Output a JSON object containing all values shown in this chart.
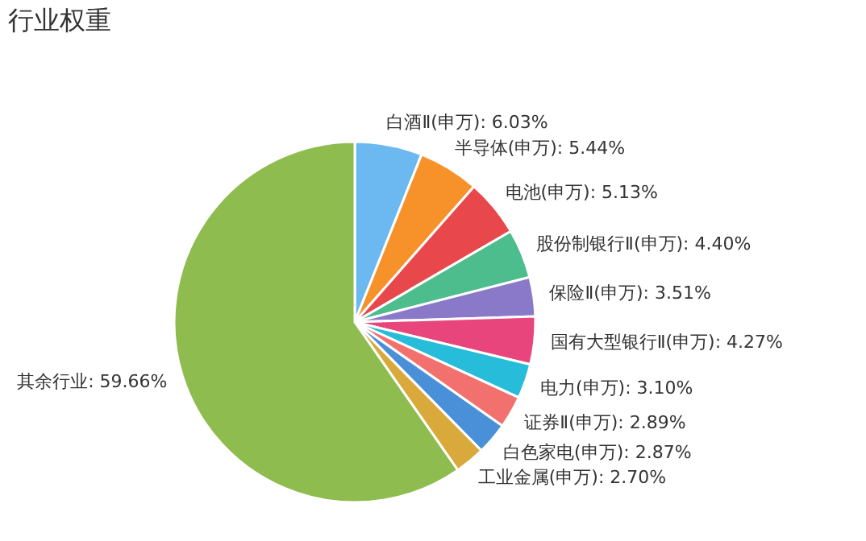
{
  "chart_data": {
    "type": "pie",
    "title": "行业权重",
    "categories": [
      "白酒Ⅱ(申万)",
      "半导体(申万)",
      "电池(申万)",
      "股份制银行Ⅱ(申万)",
      "保险Ⅱ(申万)",
      "国有大型银行Ⅱ(申万)",
      "电力(申万)",
      "证券Ⅱ(申万)",
      "白色家电(申万)",
      "工业金属(申万)",
      "其余行业"
    ],
    "values": [
      6.03,
      5.44,
      5.13,
      4.4,
      3.51,
      4.27,
      3.1,
      2.89,
      2.87,
      2.7,
      59.66
    ],
    "colors": [
      "#6cb8f0",
      "#f7922b",
      "#e8484b",
      "#4dbd8e",
      "#8a79c9",
      "#e8457d",
      "#27bcd9",
      "#f2716e",
      "#4a90d9",
      "#d9a93b",
      "#8fbc4f"
    ],
    "value_labels": [
      "6.03%",
      "5.44%",
      "5.13%",
      "4.40%",
      "3.51%",
      "4.27%",
      "3.10%",
      "2.89%",
      "2.87%",
      "2.70%",
      "59.66%"
    ],
    "legend": false
  }
}
